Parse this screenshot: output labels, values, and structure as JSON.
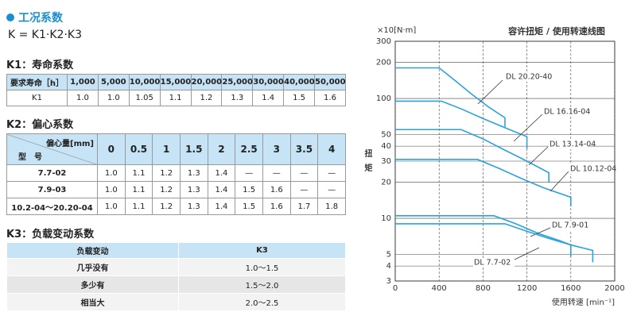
{
  "header": {
    "title": "工况系数",
    "formula": "K = K1·K2·K3"
  },
  "k1": {
    "title": "K1：寿命系数",
    "header": [
      "要求寿命［h］",
      "1,000",
      "5,000",
      "10,000",
      "15,000",
      "20,000",
      "25,000",
      "30,000",
      "40,000",
      "50,000"
    ],
    "rows": [
      [
        "K1",
        "1.0",
        "1.0",
        "1.05",
        "1.1",
        "1.2",
        "1.3",
        "1.4",
        "1.5",
        "1.6"
      ]
    ]
  },
  "k2": {
    "title": "K2：偏心系数",
    "corner_top": "偏心量[mm]",
    "corner_bottom": "型　号",
    "header": [
      "0",
      "0.5",
      "1",
      "1.5",
      "2",
      "2.5",
      "3",
      "3.5",
      "4"
    ],
    "rows": [
      [
        "7.7-02",
        "1.0",
        "1.1",
        "1.2",
        "1.3",
        "1.4",
        "—",
        "—",
        "—",
        "—"
      ],
      [
        "7.9-03",
        "1.0",
        "1.1",
        "1.2",
        "1.3",
        "1.4",
        "1.5",
        "1.6",
        "—",
        "—"
      ],
      [
        "10.2-04～20.20-04",
        "1.0",
        "1.1",
        "1.2",
        "1.3",
        "1.4",
        "1.5",
        "1.6",
        "1.7",
        "1.8"
      ]
    ]
  },
  "k3": {
    "title": "K3：负载变动系数",
    "header": [
      "负载变动",
      "K3"
    ],
    "rows": [
      [
        "几乎没有",
        "1.0～1.5"
      ],
      [
        "多少有",
        "1.5～2.0"
      ],
      [
        "相当大",
        "2.0～2.5"
      ]
    ]
  },
  "chart_data": {
    "type": "line",
    "title": "容许扭矩 / 使用转速线图",
    "y_unit": "×10[N·m]",
    "y_label": "扭矩",
    "x_label": "使用转速 [min⁻¹]",
    "log_y": true,
    "grid": true,
    "xlim": [
      0,
      2000
    ],
    "xticks": [
      0,
      400,
      800,
      1200,
      1600,
      2000
    ],
    "ylim": [
      3,
      300
    ],
    "yticks": [
      3,
      4,
      5,
      10,
      20,
      30,
      40,
      50,
      100,
      200,
      300
    ],
    "series": [
      {
        "name": "DL 20.20-40",
        "color": "#2aa3dc",
        "x": [
          0,
          400,
          550,
          700,
          850,
          1000,
          1000
        ],
        "values": [
          180,
          180,
          140,
          108,
          85,
          69,
          58
        ]
      },
      {
        "name": "DL 16.16-04",
        "color": "#2aa3dc",
        "x": [
          0,
          420,
          600,
          800,
          1000,
          1200,
          1200
        ],
        "values": [
          95,
          95,
          82,
          68,
          57,
          48,
          38
        ]
      },
      {
        "name": "DL 13.14-04",
        "color": "#2aa3dc",
        "x": [
          0,
          600,
          800,
          1000,
          1200,
          1400,
          1400
        ],
        "values": [
          55,
          55,
          46,
          37,
          30,
          24,
          20
        ]
      },
      {
        "name": "DL 10.12-04",
        "color": "#2aa3dc",
        "x": [
          0,
          750,
          950,
          1150,
          1350,
          1600,
          1600
        ],
        "values": [
          31,
          31,
          26,
          21.5,
          18,
          15,
          12.6
        ]
      },
      {
        "name": "DL 7.9-01",
        "color": "#2aa3dc",
        "x": [
          0,
          900,
          1100,
          1300,
          1500,
          1600,
          1600
        ],
        "values": [
          10.5,
          10.5,
          9,
          7.5,
          6.5,
          6,
          4.8
        ]
      },
      {
        "name": "DL 7.7-02",
        "color": "#2aa3dc",
        "x": [
          0,
          1000,
          1200,
          1400,
          1600,
          1800,
          1800
        ],
        "values": [
          9,
          9,
          7.8,
          6.8,
          6,
          5.4,
          4.3
        ]
      }
    ]
  }
}
